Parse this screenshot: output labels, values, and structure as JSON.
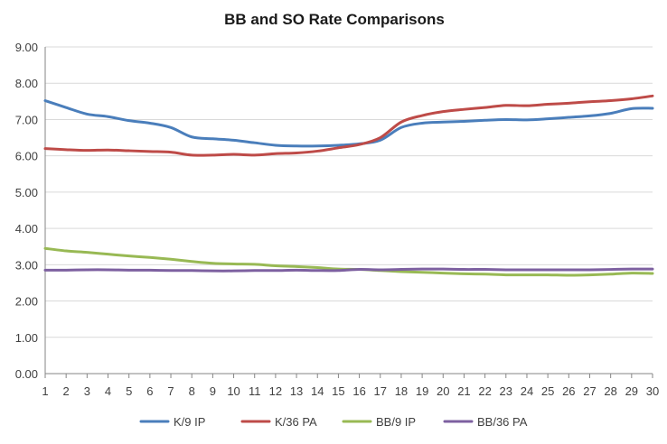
{
  "chart_data": {
    "type": "line",
    "title": "BB and SO Rate Comparisons",
    "xlabel": "",
    "ylabel": "",
    "ylim": [
      0,
      9
    ],
    "y_ticks": [
      "0.00",
      "1.00",
      "2.00",
      "3.00",
      "4.00",
      "5.00",
      "6.00",
      "7.00",
      "8.00",
      "9.00"
    ],
    "x": [
      1,
      2,
      3,
      4,
      5,
      6,
      7,
      8,
      9,
      10,
      11,
      12,
      13,
      14,
      15,
      16,
      17,
      18,
      19,
      20,
      21,
      22,
      23,
      24,
      25,
      26,
      27,
      28,
      29,
      30
    ],
    "grid": "horizontal",
    "legend_position": "bottom",
    "series": [
      {
        "name": "K/9 IP",
        "color": "#4a7ebb",
        "values": [
          7.52,
          7.33,
          7.15,
          7.08,
          6.97,
          6.9,
          6.78,
          6.52,
          6.47,
          6.43,
          6.36,
          6.29,
          6.27,
          6.27,
          6.29,
          6.33,
          6.43,
          6.78,
          6.9,
          6.93,
          6.95,
          6.98,
          7.0,
          6.99,
          7.02,
          7.06,
          7.1,
          7.17,
          7.3,
          7.31
        ]
      },
      {
        "name": "K/36 PA",
        "color": "#be4b48",
        "values": [
          6.2,
          6.17,
          6.15,
          6.16,
          6.14,
          6.12,
          6.1,
          6.02,
          6.02,
          6.04,
          6.02,
          6.06,
          6.08,
          6.13,
          6.22,
          6.31,
          6.5,
          6.93,
          7.11,
          7.22,
          7.28,
          7.33,
          7.39,
          7.38,
          7.42,
          7.45,
          7.49,
          7.52,
          7.57,
          7.65
        ]
      },
      {
        "name": "BB/9 IP",
        "color": "#98b954",
        "values": [
          3.45,
          3.38,
          3.34,
          3.29,
          3.24,
          3.2,
          3.15,
          3.09,
          3.04,
          3.02,
          3.01,
          2.97,
          2.95,
          2.92,
          2.88,
          2.87,
          2.84,
          2.81,
          2.79,
          2.77,
          2.75,
          2.74,
          2.72,
          2.72,
          2.72,
          2.71,
          2.72,
          2.74,
          2.77,
          2.76
        ]
      },
      {
        "name": "BB/36 PA",
        "color": "#7d60a0",
        "values": [
          2.85,
          2.85,
          2.86,
          2.86,
          2.85,
          2.85,
          2.84,
          2.84,
          2.83,
          2.83,
          2.84,
          2.84,
          2.85,
          2.84,
          2.84,
          2.87,
          2.86,
          2.87,
          2.88,
          2.88,
          2.87,
          2.87,
          2.86,
          2.86,
          2.86,
          2.86,
          2.86,
          2.87,
          2.88,
          2.88
        ]
      }
    ]
  }
}
